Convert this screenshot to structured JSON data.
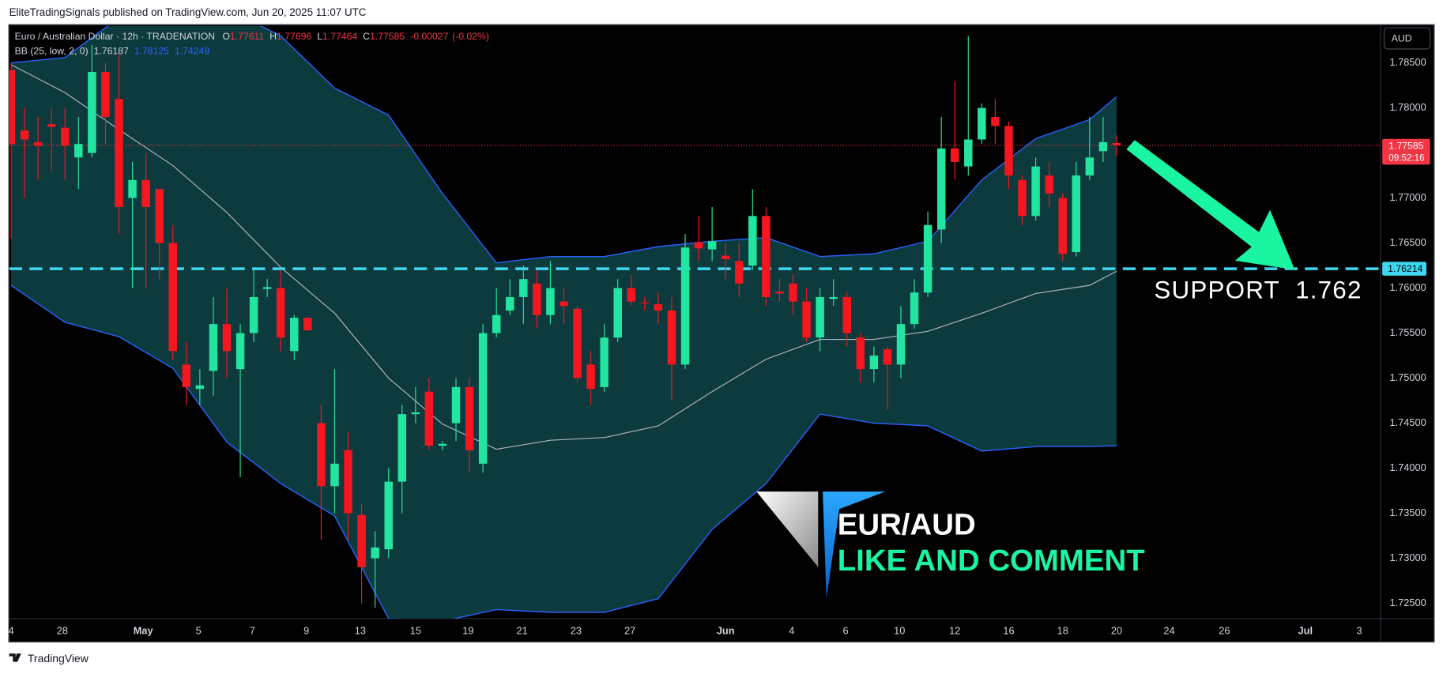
{
  "header": {
    "published": "EliteTradingSignals published on TradingView.com, Jun 20, 2025 11:07 UTC",
    "footer": "TradingView"
  },
  "chart_data": {
    "type": "candlestick",
    "title": "Euro / Australian Dollar · 12h · TRADENATION",
    "legend_labels": {
      "open": "O",
      "high": "H",
      "low": "L",
      "close": "C"
    },
    "change": "-0.00027",
    "change_pct": "(-0.02%)",
    "currency": "AUD",
    "x": [
      0,
      1,
      2,
      3,
      4,
      5,
      6,
      7,
      8,
      9,
      10,
      11,
      12,
      13,
      14,
      15,
      16,
      17,
      18,
      19,
      20,
      21,
      22,
      23,
      24,
      25,
      26,
      27,
      28,
      29,
      30,
      31,
      32,
      33,
      34,
      35,
      36,
      37,
      38,
      39,
      40,
      41,
      42,
      43,
      44,
      45,
      46,
      47,
      48,
      49,
      50,
      51,
      52,
      53,
      54,
      55,
      56,
      57,
      58,
      59,
      60,
      61,
      62,
      63,
      64,
      65,
      66,
      67,
      68,
      69,
      70,
      71,
      72,
      73,
      74,
      75,
      76,
      77,
      78,
      79,
      80,
      81,
      82
    ],
    "open": [
      1.7842,
      1.7775,
      1.7762,
      1.7782,
      1.7778,
      1.7745,
      1.775,
      1.784,
      1.781,
      1.77,
      1.772,
      1.771,
      1.765,
      1.7515,
      1.7488,
      1.7508,
      1.756,
      1.751,
      1.755,
      1.7599,
      1.76,
      1.753,
      1.7567,
      1.745,
      1.738,
      1.742,
      1.7348,
      1.73,
      1.731,
      1.7385,
      1.746,
      1.7485,
      1.7425,
      1.745,
      1.749,
      1.7405,
      1.755,
      1.7575,
      1.759,
      1.7605,
      1.757,
      1.7585,
      1.7577,
      1.7515,
      1.749,
      1.7545,
      1.76,
      1.7584,
      1.7582,
      1.7575,
      1.7515,
      1.7651,
      1.7643,
      1.7636,
      1.763,
      1.7625,
      1.768,
      1.7596,
      1.7605,
      1.7585,
      1.7545,
      1.7588,
      1.759,
      1.7545,
      1.751,
      1.7532,
      1.7515,
      1.756,
      1.7595,
      1.7665,
      1.7755,
      1.7735,
      1.7765,
      1.779,
      1.778,
      1.772,
      1.768,
      1.7725,
      1.77,
      1.764,
      1.7725,
      1.7752,
      1.77611
    ],
    "high": [
      1.785,
      1.78,
      1.779,
      1.78,
      1.78,
      1.779,
      1.787,
      1.785,
      1.786,
      1.774,
      1.775,
      1.771,
      1.767,
      1.754,
      1.751,
      1.759,
      1.76,
      1.756,
      1.762,
      1.761,
      1.762,
      1.757,
      1.7567,
      1.747,
      1.751,
      1.744,
      1.736,
      1.733,
      1.74,
      1.747,
      1.749,
      1.75,
      1.743,
      1.75,
      1.75,
      1.756,
      1.76,
      1.761,
      1.7625,
      1.762,
      1.763,
      1.76,
      1.758,
      1.753,
      1.756,
      1.761,
      1.7615,
      1.759,
      1.7595,
      1.759,
      1.766,
      1.768,
      1.769,
      1.765,
      1.765,
      1.771,
      1.769,
      1.761,
      1.7615,
      1.76,
      1.76,
      1.761,
      1.7595,
      1.755,
      1.7535,
      1.7535,
      1.758,
      1.761,
      1.7685,
      1.779,
      1.783,
      1.788,
      1.7805,
      1.781,
      1.7785,
      1.7725,
      1.7745,
      1.774,
      1.7705,
      1.774,
      1.779,
      1.779,
      1.77696
    ],
    "low": [
      1.7655,
      1.77,
      1.772,
      1.773,
      1.772,
      1.771,
      1.7745,
      1.776,
      1.766,
      1.76,
      1.76,
      1.761,
      1.752,
      1.747,
      1.747,
      1.748,
      1.75,
      1.739,
      1.754,
      1.759,
      1.753,
      1.752,
      1.7553,
      1.732,
      1.735,
      1.732,
      1.725,
      1.7245,
      1.73,
      1.735,
      1.745,
      1.742,
      1.742,
      1.743,
      1.7395,
      1.7395,
      1.7545,
      1.757,
      1.756,
      1.7555,
      1.756,
      1.756,
      1.7495,
      1.747,
      1.7485,
      1.754,
      1.758,
      1.7575,
      1.756,
      1.7475,
      1.751,
      1.763,
      1.763,
      1.761,
      1.759,
      1.762,
      1.758,
      1.7585,
      1.757,
      1.754,
      1.753,
      1.758,
      1.7535,
      1.7495,
      1.7495,
      1.7465,
      1.75,
      1.7555,
      1.759,
      1.765,
      1.772,
      1.7725,
      1.776,
      1.776,
      1.771,
      1.767,
      1.7675,
      1.769,
      1.763,
      1.7635,
      1.772,
      1.774,
      1.77464
    ],
    "close": [
      1.776,
      1.7765,
      1.7758,
      1.7779,
      1.7758,
      1.776,
      1.784,
      1.779,
      1.769,
      1.772,
      1.769,
      1.765,
      1.753,
      1.749,
      1.7492,
      1.756,
      1.753,
      1.755,
      1.759,
      1.7601,
      1.7545,
      1.7567,
      1.7553,
      1.738,
      1.7405,
      1.735,
      1.729,
      1.7312,
      1.7385,
      1.746,
      1.7462,
      1.7425,
      1.7427,
      1.749,
      1.742,
      1.755,
      1.757,
      1.759,
      1.761,
      1.757,
      1.76,
      1.758,
      1.75,
      1.7488,
      1.7545,
      1.76,
      1.7585,
      1.7583,
      1.7575,
      1.7515,
      1.7645,
      1.7644,
      1.7652,
      1.7632,
      1.7605,
      1.768,
      1.759,
      1.7594,
      1.7585,
      1.7545,
      1.759,
      1.759,
      1.755,
      1.751,
      1.7525,
      1.7515,
      1.756,
      1.7595,
      1.767,
      1.7755,
      1.774,
      1.7765,
      1.78,
      1.778,
      1.7725,
      1.768,
      1.7735,
      1.7705,
      1.7638,
      1.7725,
      1.7745,
      1.7762,
      1.77585
    ],
    "up_color": "#22e5a0",
    "down_color": "#f5161f",
    "xlim": [
      -0.14,
      101.57
    ],
    "xticks": [
      {
        "value": 0,
        "label": "4"
      },
      {
        "value": 3.8,
        "label": "28"
      },
      {
        "value": 9.8,
        "label": "May"
      },
      {
        "value": 13.9,
        "label": "5"
      },
      {
        "value": 17.9,
        "label": "7"
      },
      {
        "value": 21.9,
        "label": "9"
      },
      {
        "value": 25.9,
        "label": "13"
      },
      {
        "value": 30.0,
        "label": "15"
      },
      {
        "value": 33.9,
        "label": "19"
      },
      {
        "value": 37.9,
        "label": "21"
      },
      {
        "value": 41.9,
        "label": "23"
      },
      {
        "value": 45.9,
        "label": "27"
      },
      {
        "value": 53.0,
        "label": "Jun"
      },
      {
        "value": 57.9,
        "label": "4"
      },
      {
        "value": 61.9,
        "label": "6"
      },
      {
        "value": 65.9,
        "label": "10"
      },
      {
        "value": 70.0,
        "label": "12"
      },
      {
        "value": 74.0,
        "label": "16"
      },
      {
        "value": 78.0,
        "label": "18"
      },
      {
        "value": 82.0,
        "label": "20"
      },
      {
        "value": 85.9,
        "label": "24"
      },
      {
        "value": 90.0,
        "label": "26"
      },
      {
        "value": 96.0,
        "label": "Jul"
      },
      {
        "value": 100.0,
        "label": "3"
      }
    ],
    "ylim": [
      1.7233,
      1.7891
    ],
    "yticks": [
      {
        "value": 1.725,
        "label": "1.72500"
      },
      {
        "value": 1.73,
        "label": "1.73000"
      },
      {
        "value": 1.735,
        "label": "1.73500"
      },
      {
        "value": 1.74,
        "label": "1.74000"
      },
      {
        "value": 1.745,
        "label": "1.74500"
      },
      {
        "value": 1.75,
        "label": "1.75000"
      },
      {
        "value": 1.755,
        "label": "1.75500"
      },
      {
        "value": 1.76,
        "label": "1.76000"
      },
      {
        "value": 1.765,
        "label": "1.76500"
      },
      {
        "value": 1.77,
        "label": "1.77000"
      },
      {
        "value": 1.775,
        "label": "1.77500"
      },
      {
        "value": 1.78,
        "label": "1.78000"
      },
      {
        "value": 1.785,
        "label": "1.78500"
      }
    ],
    "grid": false,
    "bands": {
      "name": "BB (25, low, 2, 0)",
      "x": [
        0,
        4,
        8,
        12,
        16,
        20,
        24,
        28,
        32,
        36,
        40,
        44,
        48,
        52,
        56,
        60,
        64,
        68,
        72,
        76,
        80,
        82
      ],
      "upper": [
        1.785,
        1.7856,
        1.79,
        1.791,
        1.791,
        1.788,
        1.7822,
        1.7792,
        1.7705,
        1.7628,
        1.7635,
        1.7635,
        1.7646,
        1.7652,
        1.7656,
        1.7635,
        1.7638,
        1.7652,
        1.772,
        1.7766,
        1.7787,
        1.78125
      ],
      "middle": [
        1.7848,
        1.7817,
        1.7776,
        1.7736,
        1.7684,
        1.7623,
        1.7572,
        1.75,
        1.7449,
        1.7421,
        1.7431,
        1.7434,
        1.7447,
        1.7485,
        1.7521,
        1.7543,
        1.7543,
        1.7552,
        1.7572,
        1.7594,
        1.7603,
        1.76187
      ],
      "lower": [
        1.7603,
        1.7562,
        1.7546,
        1.7511,
        1.7429,
        1.7383,
        1.7347,
        1.7233,
        1.723,
        1.7243,
        1.724,
        1.724,
        1.7255,
        1.7332,
        1.7383,
        1.746,
        1.745,
        1.7447,
        1.7419,
        1.7424,
        1.7424,
        1.74249
      ],
      "line_color": "#2962ff",
      "middle_color": "#b2b5be",
      "fill": "#0d3a3d"
    },
    "last_price": {
      "countdown": "09:52:16",
      "color": "#f23645"
    },
    "support": {
      "value": 1.76214,
      "text": "SUPPORT  1.762",
      "color": "#3fd6f0"
    },
    "logo": {
      "pair": "EUR/AUD",
      "cta": "LIKE AND COMMENT"
    }
  }
}
